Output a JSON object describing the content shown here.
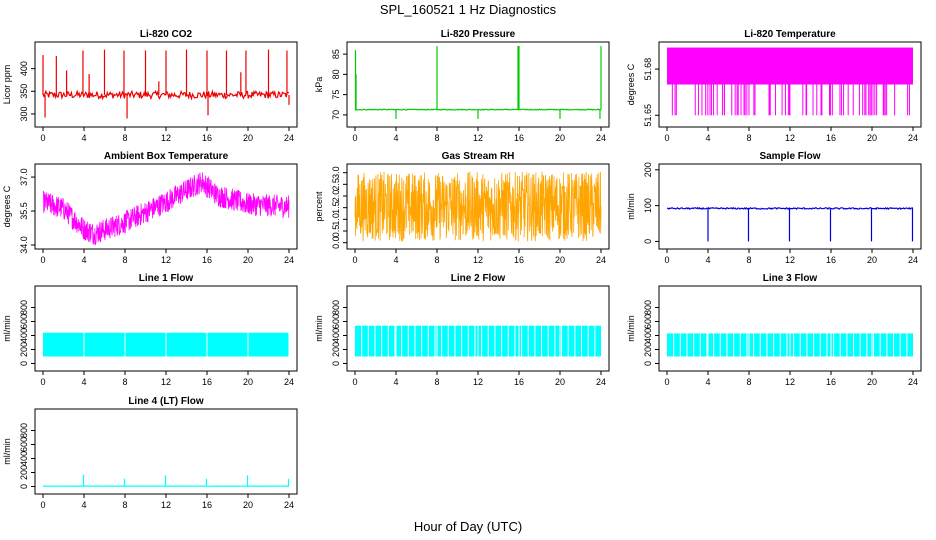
{
  "page": {
    "title": "SPL_160521  1 Hz Diagnostics",
    "xlabel": "Hour of Day (UTC)"
  },
  "colors": {
    "red": "#ee0000",
    "green": "#00cc00",
    "magenta": "#ff00ff",
    "orange": "#ffa500",
    "blue": "#0000dd",
    "cyan": "#00ffff",
    "axis": "#000000"
  },
  "chart_data": [
    {
      "type": "line",
      "title": "Li-820 CO2",
      "ylabel": "Licor ppm",
      "color": "red",
      "xlim": [
        0,
        24
      ],
      "ylim": [
        280,
        450
      ],
      "xticks": [
        "0",
        "4",
        "8",
        "12",
        "16",
        "20",
        "24"
      ],
      "yticks": [
        "300",
        "350",
        "400"
      ],
      "baseline": 342,
      "noise": 8,
      "band": false,
      "spikes": [
        {
          "x": 0.0,
          "y": 430
        },
        {
          "x": 0.2,
          "y": 292
        },
        {
          "x": 1.3,
          "y": 428
        },
        {
          "x": 2.3,
          "y": 396
        },
        {
          "x": 3.9,
          "y": 440
        },
        {
          "x": 4.5,
          "y": 388
        },
        {
          "x": 6.0,
          "y": 442
        },
        {
          "x": 7.9,
          "y": 440
        },
        {
          "x": 8.2,
          "y": 290
        },
        {
          "x": 10.0,
          "y": 440
        },
        {
          "x": 11.3,
          "y": 372
        },
        {
          "x": 12.0,
          "y": 440
        },
        {
          "x": 14.0,
          "y": 442
        },
        {
          "x": 16.0,
          "y": 440
        },
        {
          "x": 16.1,
          "y": 297
        },
        {
          "x": 17.9,
          "y": 440
        },
        {
          "x": 19.3,
          "y": 392
        },
        {
          "x": 19.8,
          "y": 440
        },
        {
          "x": 22.0,
          "y": 442
        },
        {
          "x": 23.8,
          "y": 440
        },
        {
          "x": 24.0,
          "y": 320
        }
      ]
    },
    {
      "type": "line",
      "title": "Li-820 Pressure",
      "ylabel": "kPa",
      "color": "green",
      "xlim": [
        0,
        24
      ],
      "ylim": [
        68,
        87
      ],
      "xticks": [
        "0",
        "4",
        "8",
        "12",
        "16",
        "20",
        "24"
      ],
      "yticks": [
        "70",
        "75",
        "80",
        "85"
      ],
      "baseline": 71.3,
      "noise": 0.1,
      "band": false,
      "spikes": [
        {
          "x": 0.05,
          "y": 86
        },
        {
          "x": 0.1,
          "y": 80
        },
        {
          "x": 4.0,
          "y": 69
        },
        {
          "x": 8.0,
          "y": 87
        },
        {
          "x": 12.0,
          "y": 69
        },
        {
          "x": 15.9,
          "y": 87
        },
        {
          "x": 16.0,
          "y": 87
        },
        {
          "x": 20.0,
          "y": 69
        },
        {
          "x": 23.9,
          "y": 69
        },
        {
          "x": 24.0,
          "y": 87
        }
      ]
    },
    {
      "type": "band",
      "title": "Li-820 Temperature",
      "ylabel": "degrees C",
      "color": "magenta",
      "xlim": [
        0,
        24
      ],
      "ylim": [
        51.645,
        51.695
      ],
      "xticks": [
        "0",
        "4",
        "8",
        "12",
        "16",
        "20",
        "24"
      ],
      "yticks": [
        "51.65",
        "51.68"
      ],
      "band_low": 51.67,
      "band_high": 51.694,
      "drop_to": 51.65
    },
    {
      "type": "noise",
      "title": "Ambient Box Temperature",
      "ylabel": "degrees C",
      "color": "magenta",
      "xlim": [
        0,
        24
      ],
      "ylim": [
        34.0,
        37.4
      ],
      "xticks": [
        "0",
        "4",
        "8",
        "12",
        "16",
        "20",
        "24"
      ],
      "yticks": [
        "34.0",
        "35.5",
        "37.0"
      ],
      "trend": [
        {
          "x": 0,
          "y": 35.9
        },
        {
          "x": 2,
          "y": 35.6
        },
        {
          "x": 4,
          "y": 34.7
        },
        {
          "x": 5,
          "y": 34.5
        },
        {
          "x": 8,
          "y": 35.0
        },
        {
          "x": 12,
          "y": 35.9
        },
        {
          "x": 15.5,
          "y": 36.8
        },
        {
          "x": 17,
          "y": 36.2
        },
        {
          "x": 20,
          "y": 35.8
        },
        {
          "x": 24,
          "y": 35.7
        }
      ],
      "amplitude": 0.5
    },
    {
      "type": "noise",
      "title": "Gas Stream RH",
      "ylabel": "percent",
      "color": "orange",
      "xlim": [
        0,
        24
      ],
      "ylim": [
        -0.1,
        3.2
      ],
      "xticks": [
        "0",
        "4",
        "8",
        "12",
        "16",
        "20",
        "24"
      ],
      "yticks": [
        "0.0",
        "0.5",
        "1.0",
        "1.5",
        "2.0",
        "2.5",
        "3.0"
      ],
      "trend": [
        {
          "x": 0,
          "y": 1.55
        },
        {
          "x": 24,
          "y": 1.55
        }
      ],
      "amplitude": 1.5
    },
    {
      "type": "line",
      "title": "Sample Flow",
      "ylabel": "ml/min",
      "color": "blue",
      "xlim": [
        0,
        24
      ],
      "ylim": [
        -10,
        205
      ],
      "xticks": [
        "0",
        "4",
        "8",
        "12",
        "16",
        "20",
        "24"
      ],
      "yticks": [
        "0",
        "100",
        "200"
      ],
      "baseline": 92,
      "noise": 2,
      "band": false,
      "spikes": [
        {
          "x": 4.0,
          "y": 0
        },
        {
          "x": 7.95,
          "y": 0
        },
        {
          "x": 11.95,
          "y": 0
        },
        {
          "x": 15.95,
          "y": 0
        },
        {
          "x": 19.95,
          "y": 0
        },
        {
          "x": 23.95,
          "y": 0
        }
      ]
    },
    {
      "type": "flow",
      "title": "Line 1 Flow",
      "ylabel": "ml/min",
      "color": "cyan",
      "xlim": [
        0,
        24
      ],
      "ylim": [
        -50,
        1050
      ],
      "xticks": [
        "0",
        "4",
        "8",
        "12",
        "16",
        "20",
        "24"
      ],
      "yticks": [
        "0",
        "200",
        "400",
        "600",
        "800"
      ],
      "band_low": 100,
      "band_high": 440,
      "gaps": [
        4,
        8,
        12,
        16,
        20,
        24
      ],
      "gap_every": 0
    },
    {
      "type": "flow",
      "title": "Line 2 Flow",
      "ylabel": "ml/min",
      "color": "cyan",
      "xlim": [
        0,
        24
      ],
      "ylim": [
        -50,
        1050
      ],
      "xticks": [
        "0",
        "4",
        "8",
        "12",
        "16",
        "20",
        "24"
      ],
      "yticks": [
        "0",
        "200",
        "400",
        "600",
        "800"
      ],
      "band_low": 100,
      "band_high": 540,
      "gaps": [
        4,
        8,
        12,
        16,
        20
      ],
      "gap_every": 0.65
    },
    {
      "type": "flow",
      "title": "Line 3 Flow",
      "ylabel": "ml/min",
      "color": "cyan",
      "xlim": [
        0,
        24
      ],
      "ylim": [
        -50,
        1050
      ],
      "xticks": [
        "0",
        "4",
        "8",
        "12",
        "16",
        "20",
        "24"
      ],
      "yticks": [
        "0",
        "200",
        "400",
        "600",
        "800"
      ],
      "band_low": 100,
      "band_high": 430,
      "gaps": [
        4,
        8,
        12,
        16,
        20
      ],
      "gap_every": 0.65
    },
    {
      "type": "line",
      "title": "Line 4 (LT) Flow",
      "ylabel": "ml/min",
      "color": "cyan",
      "xlim": [
        0,
        24
      ],
      "ylim": [
        -50,
        1050
      ],
      "xticks": [
        "0",
        "4",
        "8",
        "12",
        "16",
        "20",
        "24"
      ],
      "yticks": [
        "0",
        "200",
        "400",
        "600",
        "800"
      ],
      "baseline": 5,
      "noise": 2,
      "band": false,
      "spikes": [
        {
          "x": 3.95,
          "y": 170
        },
        {
          "x": 7.95,
          "y": 110
        },
        {
          "x": 11.95,
          "y": 160
        },
        {
          "x": 15.95,
          "y": 110
        },
        {
          "x": 19.95,
          "y": 160
        },
        {
          "x": 23.95,
          "y": 110
        }
      ]
    }
  ]
}
